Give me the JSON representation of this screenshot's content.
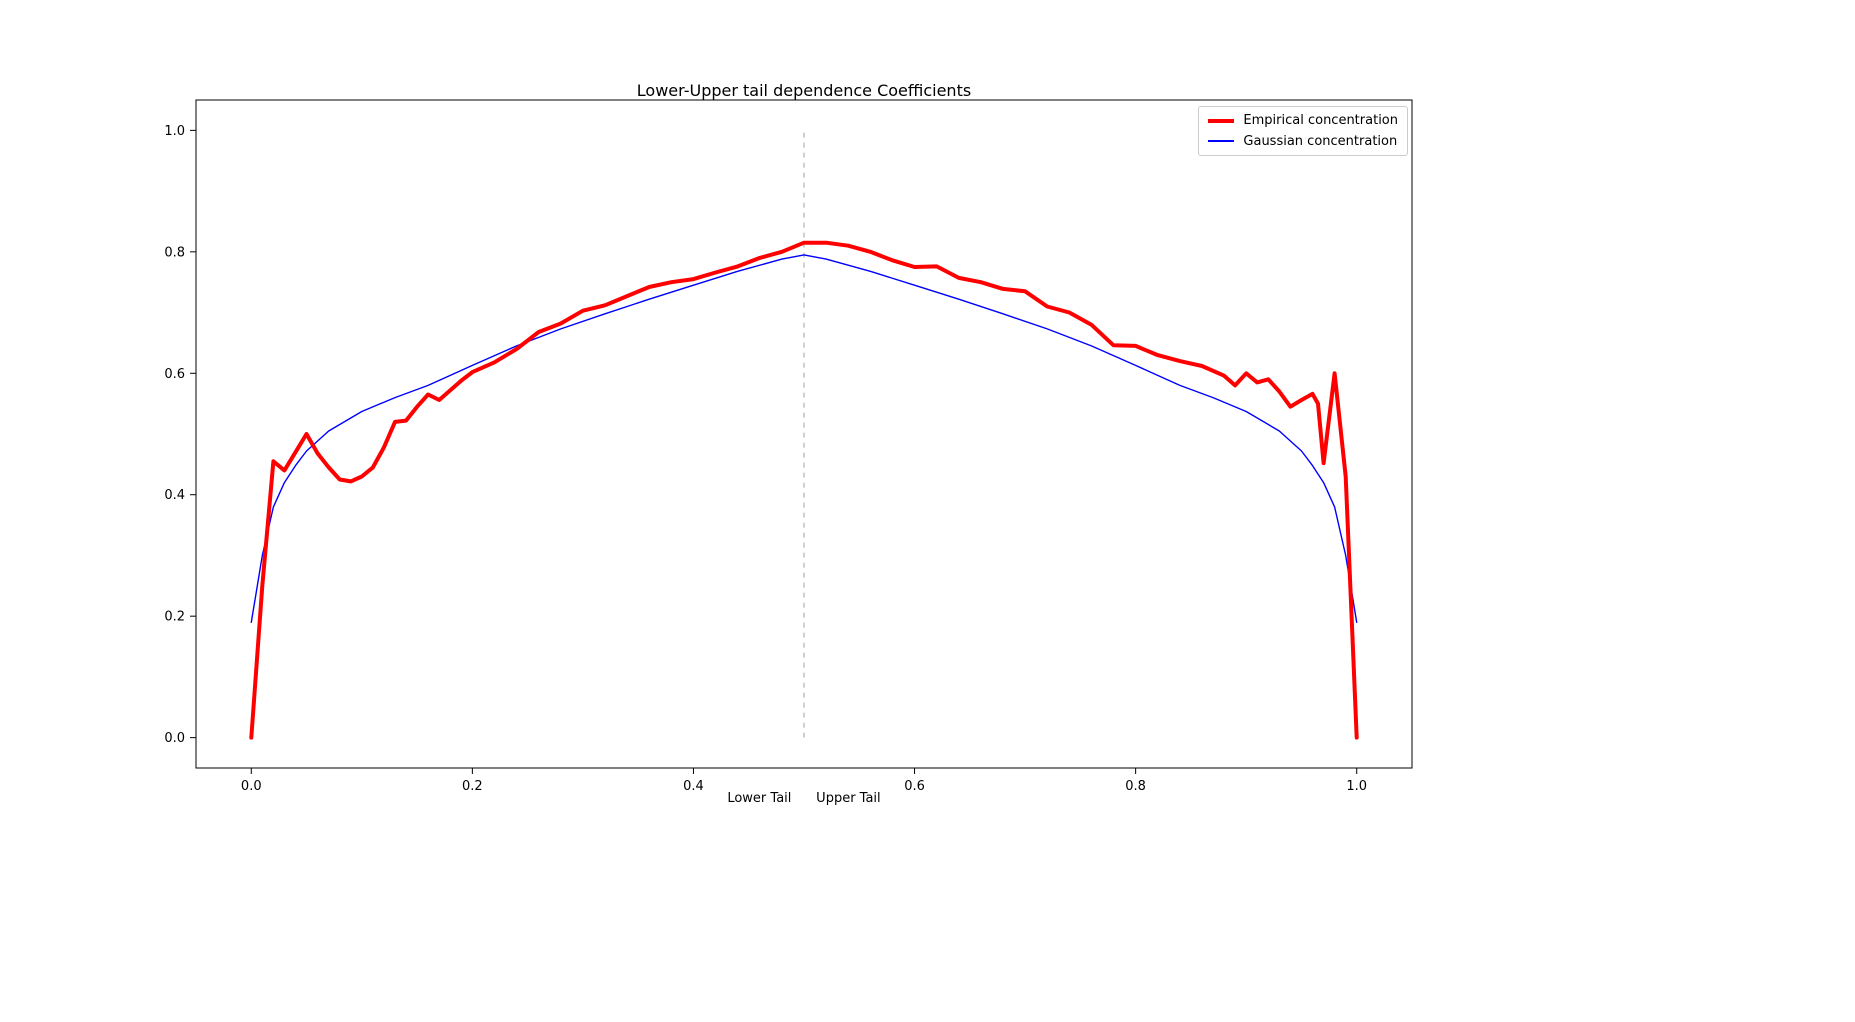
{
  "chart_data": {
    "type": "line",
    "title": "Lower-Upper tail dependence Coefficients",
    "xlabel": "Lower Tail      Upper Tail",
    "ylabel": "",
    "xlim": [
      -0.05,
      1.05
    ],
    "ylim": [
      -0.05,
      1.05
    ],
    "x_tick_values": [
      0.0,
      0.2,
      0.4,
      0.6,
      0.8,
      1.0
    ],
    "x_tick_labels": [
      "0.0",
      "0.2",
      "0.4",
      "0.6",
      "0.8",
      "1.0"
    ],
    "y_tick_values": [
      0.0,
      0.2,
      0.4,
      0.6,
      0.8,
      1.0
    ],
    "y_tick_labels": [
      "0.0",
      "0.2",
      "0.4",
      "0.6",
      "0.8",
      "1.0"
    ],
    "grid": false,
    "legend_position": "upper right",
    "vline": {
      "x": 0.5,
      "y_from": 0.0,
      "y_to": 1.0,
      "style": "dashed",
      "color": "#b0b0b0"
    },
    "series": [
      {
        "name": "Empirical concentration",
        "color": "#ff0000",
        "line_width": 4,
        "x": [
          0.0,
          0.01,
          0.02,
          0.03,
          0.04,
          0.05,
          0.06,
          0.07,
          0.08,
          0.09,
          0.1,
          0.11,
          0.12,
          0.13,
          0.14,
          0.15,
          0.16,
          0.17,
          0.18,
          0.19,
          0.2,
          0.22,
          0.24,
          0.26,
          0.28,
          0.3,
          0.32,
          0.34,
          0.36,
          0.38,
          0.4,
          0.42,
          0.44,
          0.46,
          0.48,
          0.5,
          0.52,
          0.54,
          0.56,
          0.58,
          0.6,
          0.62,
          0.64,
          0.66,
          0.68,
          0.7,
          0.72,
          0.74,
          0.76,
          0.78,
          0.8,
          0.82,
          0.84,
          0.86,
          0.88,
          0.89,
          0.9,
          0.91,
          0.92,
          0.93,
          0.94,
          0.95,
          0.96,
          0.965,
          0.97,
          0.98,
          0.99,
          1.0
        ],
        "y": [
          0.0,
          0.25,
          0.455,
          0.44,
          0.47,
          0.5,
          0.468,
          0.445,
          0.425,
          0.422,
          0.43,
          0.445,
          0.478,
          0.52,
          0.522,
          0.545,
          0.565,
          0.556,
          0.572,
          0.588,
          0.602,
          0.618,
          0.64,
          0.668,
          0.682,
          0.703,
          0.712,
          0.727,
          0.742,
          0.75,
          0.755,
          0.766,
          0.776,
          0.79,
          0.8,
          0.815,
          0.815,
          0.81,
          0.8,
          0.786,
          0.775,
          0.776,
          0.757,
          0.75,
          0.739,
          0.735,
          0.71,
          0.7,
          0.68,
          0.646,
          0.645,
          0.63,
          0.62,
          0.612,
          0.596,
          0.58,
          0.6,
          0.585,
          0.59,
          0.57,
          0.545,
          0.556,
          0.566,
          0.55,
          0.452,
          0.6,
          0.43,
          0.0
        ]
      },
      {
        "name": "Gaussian concentration",
        "color": "#0000ff",
        "line_width": 1.4,
        "x": [
          0.0,
          0.01,
          0.02,
          0.03,
          0.04,
          0.05,
          0.07,
          0.1,
          0.13,
          0.16,
          0.2,
          0.24,
          0.28,
          0.32,
          0.36,
          0.4,
          0.44,
          0.48,
          0.5,
          0.52,
          0.56,
          0.6,
          0.64,
          0.68,
          0.72,
          0.76,
          0.8,
          0.84,
          0.87,
          0.9,
          0.93,
          0.95,
          0.96,
          0.97,
          0.98,
          0.99,
          1.0
        ],
        "y": [
          0.19,
          0.3,
          0.38,
          0.42,
          0.448,
          0.472,
          0.505,
          0.537,
          0.56,
          0.58,
          0.613,
          0.645,
          0.673,
          0.698,
          0.722,
          0.745,
          0.768,
          0.788,
          0.795,
          0.788,
          0.768,
          0.745,
          0.722,
          0.698,
          0.673,
          0.645,
          0.613,
          0.58,
          0.56,
          0.537,
          0.505,
          0.472,
          0.448,
          0.42,
          0.38,
          0.3,
          0.19
        ]
      }
    ]
  }
}
